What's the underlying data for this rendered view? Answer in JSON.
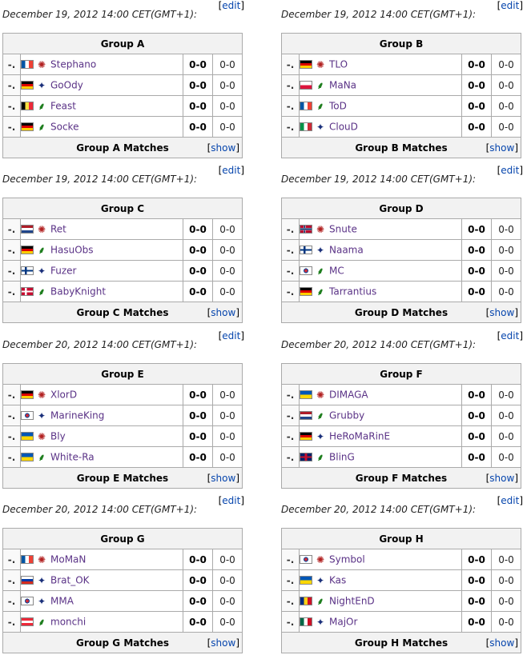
{
  "labels": {
    "edit": "edit",
    "show": "show",
    "score": "0-0",
    "games": "0-0",
    "position": "-."
  },
  "icons": {
    "zerg": "zerg-race-icon",
    "terran": "terran-race-icon",
    "protoss": "protoss-race-icon"
  },
  "groups": [
    {
      "date": "December 19, 2012 14:00 CET(GMT+1):",
      "name": "Group A",
      "matches_label": "Group A Matches",
      "players": [
        {
          "name": "Stephano",
          "flag": "fr",
          "race": "z"
        },
        {
          "name": "GoOdy",
          "flag": "de",
          "race": "t"
        },
        {
          "name": "Feast",
          "flag": "be",
          "race": "p"
        },
        {
          "name": "Socke",
          "flag": "de",
          "race": "p"
        }
      ]
    },
    {
      "date": "December 19, 2012 14:00 CET(GMT+1):",
      "name": "Group B",
      "matches_label": "Group B Matches",
      "players": [
        {
          "name": "TLO",
          "flag": "de",
          "race": "z"
        },
        {
          "name": "MaNa",
          "flag": "pl",
          "race": "p"
        },
        {
          "name": "ToD",
          "flag": "fr",
          "race": "p"
        },
        {
          "name": "ClouD",
          "flag": "it",
          "race": "t"
        }
      ]
    },
    {
      "date": "December 19, 2012 14:00 CET(GMT+1):",
      "name": "Group C",
      "matches_label": "Group C Matches",
      "players": [
        {
          "name": "Ret",
          "flag": "nl",
          "race": "z"
        },
        {
          "name": "HasuObs",
          "flag": "de",
          "race": "p"
        },
        {
          "name": "Fuzer",
          "flag": "fi",
          "race": "t"
        },
        {
          "name": "BabyKnight",
          "flag": "dk",
          "race": "p"
        }
      ]
    },
    {
      "date": "December 19, 2012 14:00 CET(GMT+1):",
      "name": "Group D",
      "matches_label": "Group D Matches",
      "players": [
        {
          "name": "Snute",
          "flag": "no",
          "race": "z"
        },
        {
          "name": "Naama",
          "flag": "fi",
          "race": "t"
        },
        {
          "name": "MC",
          "flag": "kr",
          "race": "p"
        },
        {
          "name": "Tarrantius",
          "flag": "de",
          "race": "p"
        }
      ]
    },
    {
      "date": "December 20, 2012 14:00 CET(GMT+1):",
      "name": "Group E",
      "matches_label": "Group E Matches",
      "players": [
        {
          "name": "XlorD",
          "flag": "de",
          "race": "z"
        },
        {
          "name": "MarineKing",
          "flag": "kr",
          "race": "t"
        },
        {
          "name": "Bly",
          "flag": "ua",
          "race": "z"
        },
        {
          "name": "White-Ra",
          "flag": "ua",
          "race": "p"
        }
      ]
    },
    {
      "date": "December 20, 2012 14:00 CET(GMT+1):",
      "name": "Group F",
      "matches_label": "Group F Matches",
      "players": [
        {
          "name": "DIMAGA",
          "flag": "ua",
          "race": "z"
        },
        {
          "name": "Grubby",
          "flag": "nl",
          "race": "p"
        },
        {
          "name": "HeRoMaRinE",
          "flag": "de",
          "race": "t"
        },
        {
          "name": "BlinG",
          "flag": "gb",
          "race": "p"
        }
      ]
    },
    {
      "date": "December 20, 2012 14:00 CET(GMT+1):",
      "name": "Group G",
      "matches_label": "Group G Matches",
      "players": [
        {
          "name": "MoMaN",
          "flag": "fr",
          "race": "z"
        },
        {
          "name": "Brat_OK",
          "flag": "ru",
          "race": "t"
        },
        {
          "name": "MMA",
          "flag": "kr",
          "race": "t"
        },
        {
          "name": "monchi",
          "flag": "at",
          "race": "p"
        }
      ]
    },
    {
      "date": "December 20, 2012 14:00 CET(GMT+1):",
      "name": "Group H",
      "matches_label": "Group H Matches",
      "players": [
        {
          "name": "Symbol",
          "flag": "kr",
          "race": "z"
        },
        {
          "name": "Kas",
          "flag": "ua",
          "race": "t"
        },
        {
          "name": "NightEnD",
          "flag": "ro",
          "race": "p"
        },
        {
          "name": "MajOr",
          "flag": "mx",
          "race": "t"
        }
      ]
    }
  ]
}
